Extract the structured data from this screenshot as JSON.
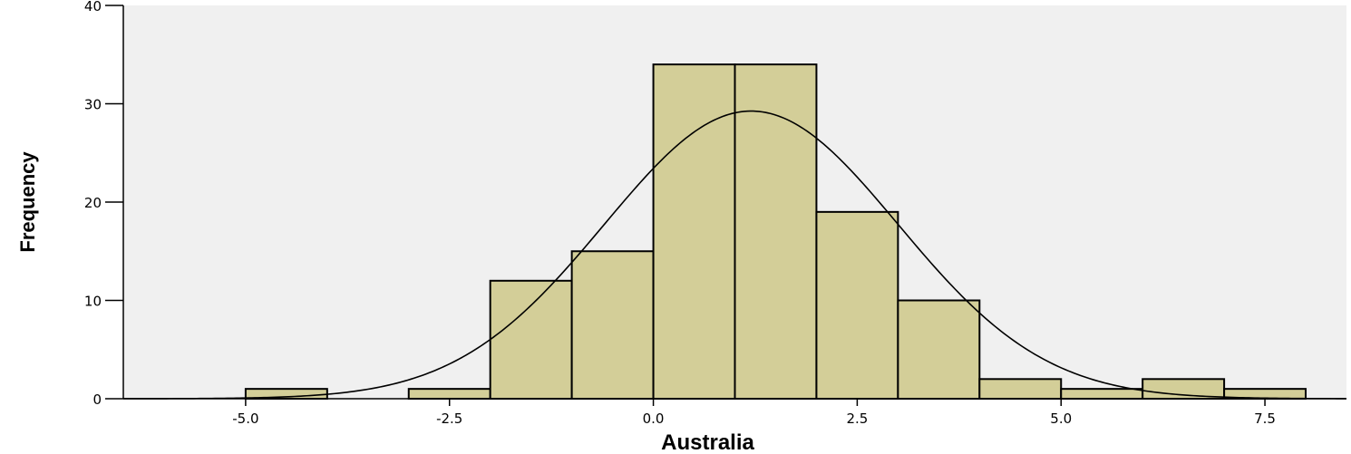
{
  "chart_data": {
    "type": "bar",
    "title": "",
    "xlabel": "Australia",
    "ylabel": "Frequency",
    "xlim": [
      -6.5,
      8.5
    ],
    "ylim": [
      0,
      40
    ],
    "x_ticks": [
      -5.0,
      -2.5,
      0.0,
      2.5,
      5.0,
      7.5
    ],
    "x_tick_labels": [
      "-5.0",
      "-2.5",
      "0.0",
      "2.5",
      "5.0",
      "7.5"
    ],
    "y_ticks": [
      0,
      10,
      20,
      30,
      40
    ],
    "y_tick_labels": [
      "0",
      "10",
      "20",
      "30",
      "40"
    ],
    "bins": [
      {
        "start": -5,
        "end": -4,
        "count": 1
      },
      {
        "start": -3,
        "end": -2,
        "count": 1
      },
      {
        "start": -2,
        "end": -1,
        "count": 12
      },
      {
        "start": -1,
        "end": 0,
        "count": 15
      },
      {
        "start": 0,
        "end": 1,
        "count": 34
      },
      {
        "start": 1,
        "end": 2,
        "count": 34
      },
      {
        "start": 2,
        "end": 3,
        "count": 19
      },
      {
        "start": 3,
        "end": 4,
        "count": 10
      },
      {
        "start": 4,
        "end": 5,
        "count": 2
      },
      {
        "start": 5,
        "end": 6,
        "count": 1
      },
      {
        "start": 6,
        "end": 7,
        "count": 2
      },
      {
        "start": 7,
        "end": 8,
        "count": 1
      }
    ],
    "normal_curve": {
      "mean": 1.2,
      "std_dev": 1.8,
      "n": 132,
      "bin_width": 1
    },
    "grid": false,
    "colors": {
      "bar_fill": "#d3ce98",
      "bar_stroke": "#000000",
      "plot_background": "#f0f0f0",
      "curve": "#000000"
    }
  }
}
